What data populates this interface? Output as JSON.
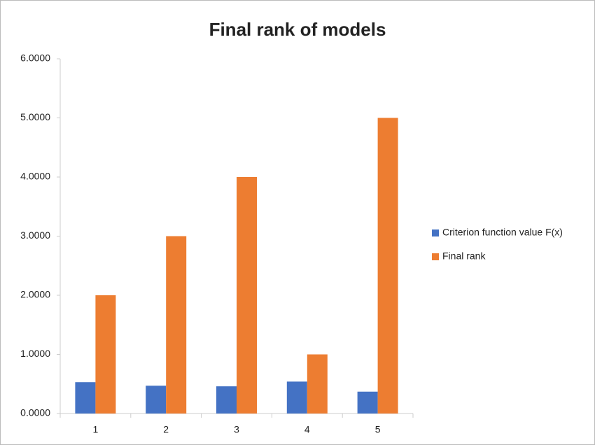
{
  "chart_data": {
    "type": "bar",
    "title": "Final rank of models",
    "categories": [
      "1",
      "2",
      "3",
      "4",
      "5"
    ],
    "series": [
      {
        "name": "Criterion function value F(x)",
        "color": "#4472c4",
        "values": [
          0.53,
          0.47,
          0.46,
          0.54,
          0.37
        ]
      },
      {
        "name": "Final rank",
        "color": "#ed7d31",
        "values": [
          2,
          3,
          4,
          1,
          5
        ]
      }
    ],
    "ylim": [
      0,
      6
    ],
    "yticks": [
      {
        "value": 0,
        "label": "0.0000"
      },
      {
        "value": 1,
        "label": "1.0000"
      },
      {
        "value": 2,
        "label": "2.0000"
      },
      {
        "value": 3,
        "label": "3.0000"
      },
      {
        "value": 4,
        "label": "4.0000"
      },
      {
        "value": 5,
        "label": "5.0000"
      },
      {
        "value": 6,
        "label": "6.0000"
      }
    ],
    "grid": false,
    "legend": "right"
  }
}
